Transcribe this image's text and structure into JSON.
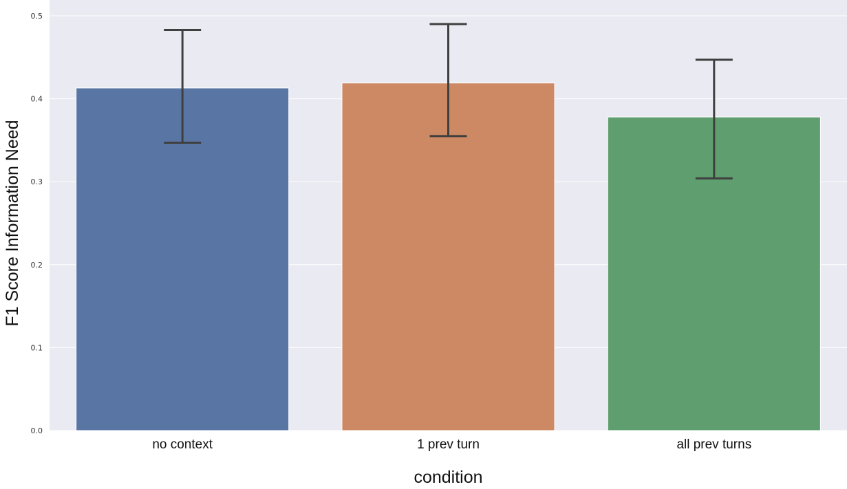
{
  "chart_data": {
    "type": "bar",
    "title": "",
    "xlabel": "condition",
    "ylabel": "F1 Score Information Need",
    "categories": [
      "no context",
      "1 prev turn",
      "all prev turns"
    ],
    "values": [
      0.413,
      0.419,
      0.378
    ],
    "error_low": [
      0.347,
      0.355,
      0.304
    ],
    "error_high": [
      0.483,
      0.49,
      0.447
    ],
    "ylim": [
      0,
      0.5
    ],
    "yticks": [
      "0.0",
      "0.1",
      "0.2",
      "0.3",
      "0.4",
      "0.5"
    ],
    "grid": true,
    "colors": {
      "background": "#eaeaf2",
      "grid": "#ffffff",
      "bars": [
        "#5975a4",
        "#cc8963",
        "#5f9e6e"
      ],
      "errorbar": "#3f3f3f"
    }
  }
}
